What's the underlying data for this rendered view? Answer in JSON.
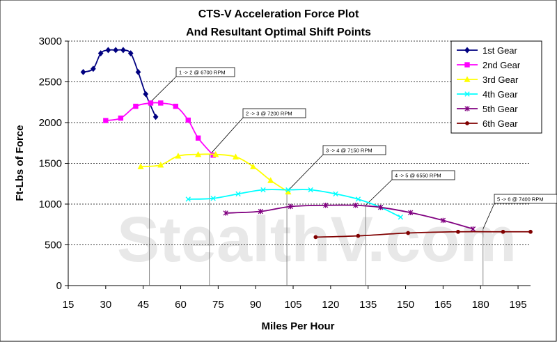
{
  "chart_data": {
    "type": "line",
    "title": "CTS-V Acceleration Force Plot",
    "subtitle": "And Resultant Optimal Shift Points",
    "xlabel": "Miles Per Hour",
    "ylabel": "Ft-Lbs of Force",
    "xlim": [
      15,
      200
    ],
    "ylim": [
      0,
      3000
    ],
    "xticks": [
      "15",
      "30",
      "45",
      "60",
      "75",
      "90",
      "105",
      "120",
      "135",
      "150",
      "165",
      "180",
      "195"
    ],
    "yticks": [
      "0",
      "500",
      "1000",
      "1500",
      "2000",
      "2500",
      "3000"
    ],
    "grid": "horizontal dashed",
    "legend_position": "top-right",
    "watermark": "StealthV.com",
    "series": [
      {
        "name": "1st Gear",
        "color": "#000080",
        "marker": "diamond",
        "points": [
          [
            21,
            2620
          ],
          [
            25,
            2660
          ],
          [
            28,
            2850
          ],
          [
            31,
            2890
          ],
          [
            34,
            2890
          ],
          [
            37,
            2890
          ],
          [
            40,
            2850
          ],
          [
            43,
            2620
          ],
          [
            46,
            2350
          ],
          [
            50,
            2070
          ]
        ]
      },
      {
        "name": "2nd Gear",
        "color": "#ff00ff",
        "marker": "square",
        "points": [
          [
            30,
            2025
          ],
          [
            36,
            2055
          ],
          [
            42,
            2200
          ],
          [
            48,
            2240
          ],
          [
            52,
            2240
          ],
          [
            58,
            2200
          ],
          [
            63,
            2030
          ],
          [
            67,
            1810
          ],
          [
            73,
            1600
          ]
        ]
      },
      {
        "name": "3rd Gear",
        "color": "#ffff00",
        "marker": "triangle",
        "points": [
          [
            44,
            1460
          ],
          [
            52,
            1480
          ],
          [
            59,
            1590
          ],
          [
            67,
            1610
          ],
          [
            74,
            1610
          ],
          [
            82,
            1580
          ],
          [
            89,
            1460
          ],
          [
            96,
            1290
          ],
          [
            103,
            1150
          ]
        ]
      },
      {
        "name": "4th Gear",
        "color": "#00ffff",
        "marker": "x",
        "points": [
          [
            63,
            1060
          ],
          [
            73,
            1070
          ],
          [
            83,
            1125
          ],
          [
            93,
            1175
          ],
          [
            103,
            1175
          ],
          [
            112,
            1175
          ],
          [
            122,
            1125
          ],
          [
            131,
            1060
          ],
          [
            140,
            960
          ],
          [
            148,
            840
          ]
        ]
      },
      {
        "name": "5th Gear",
        "color": "#800080",
        "marker": "star",
        "points": [
          [
            78,
            890
          ],
          [
            92,
            910
          ],
          [
            104,
            970
          ],
          [
            118,
            985
          ],
          [
            130,
            985
          ],
          [
            140,
            960
          ],
          [
            152,
            895
          ],
          [
            165,
            800
          ],
          [
            177,
            695
          ]
        ]
      },
      {
        "name": "6th Gear",
        "color": "#800000",
        "marker": "circle",
        "points": [
          [
            114,
            595
          ],
          [
            131,
            610
          ],
          [
            151,
            645
          ],
          [
            171,
            660
          ],
          [
            189,
            660
          ],
          [
            200,
            660
          ]
        ]
      }
    ],
    "annotations": [
      {
        "text": "1 -> 2 @ 6700 RPM",
        "x": 47.5
      },
      {
        "text": "2 -> 3 @ 7200 RPM",
        "x": 71.5
      },
      {
        "text": "3 -> 4 @ 7150 RPM",
        "x": 102.5
      },
      {
        "text": "4 -> 5 @ 6550 RPM",
        "x": 134
      },
      {
        "text": "5 -> 6 @ 7400 RPM",
        "x": 181
      }
    ]
  }
}
